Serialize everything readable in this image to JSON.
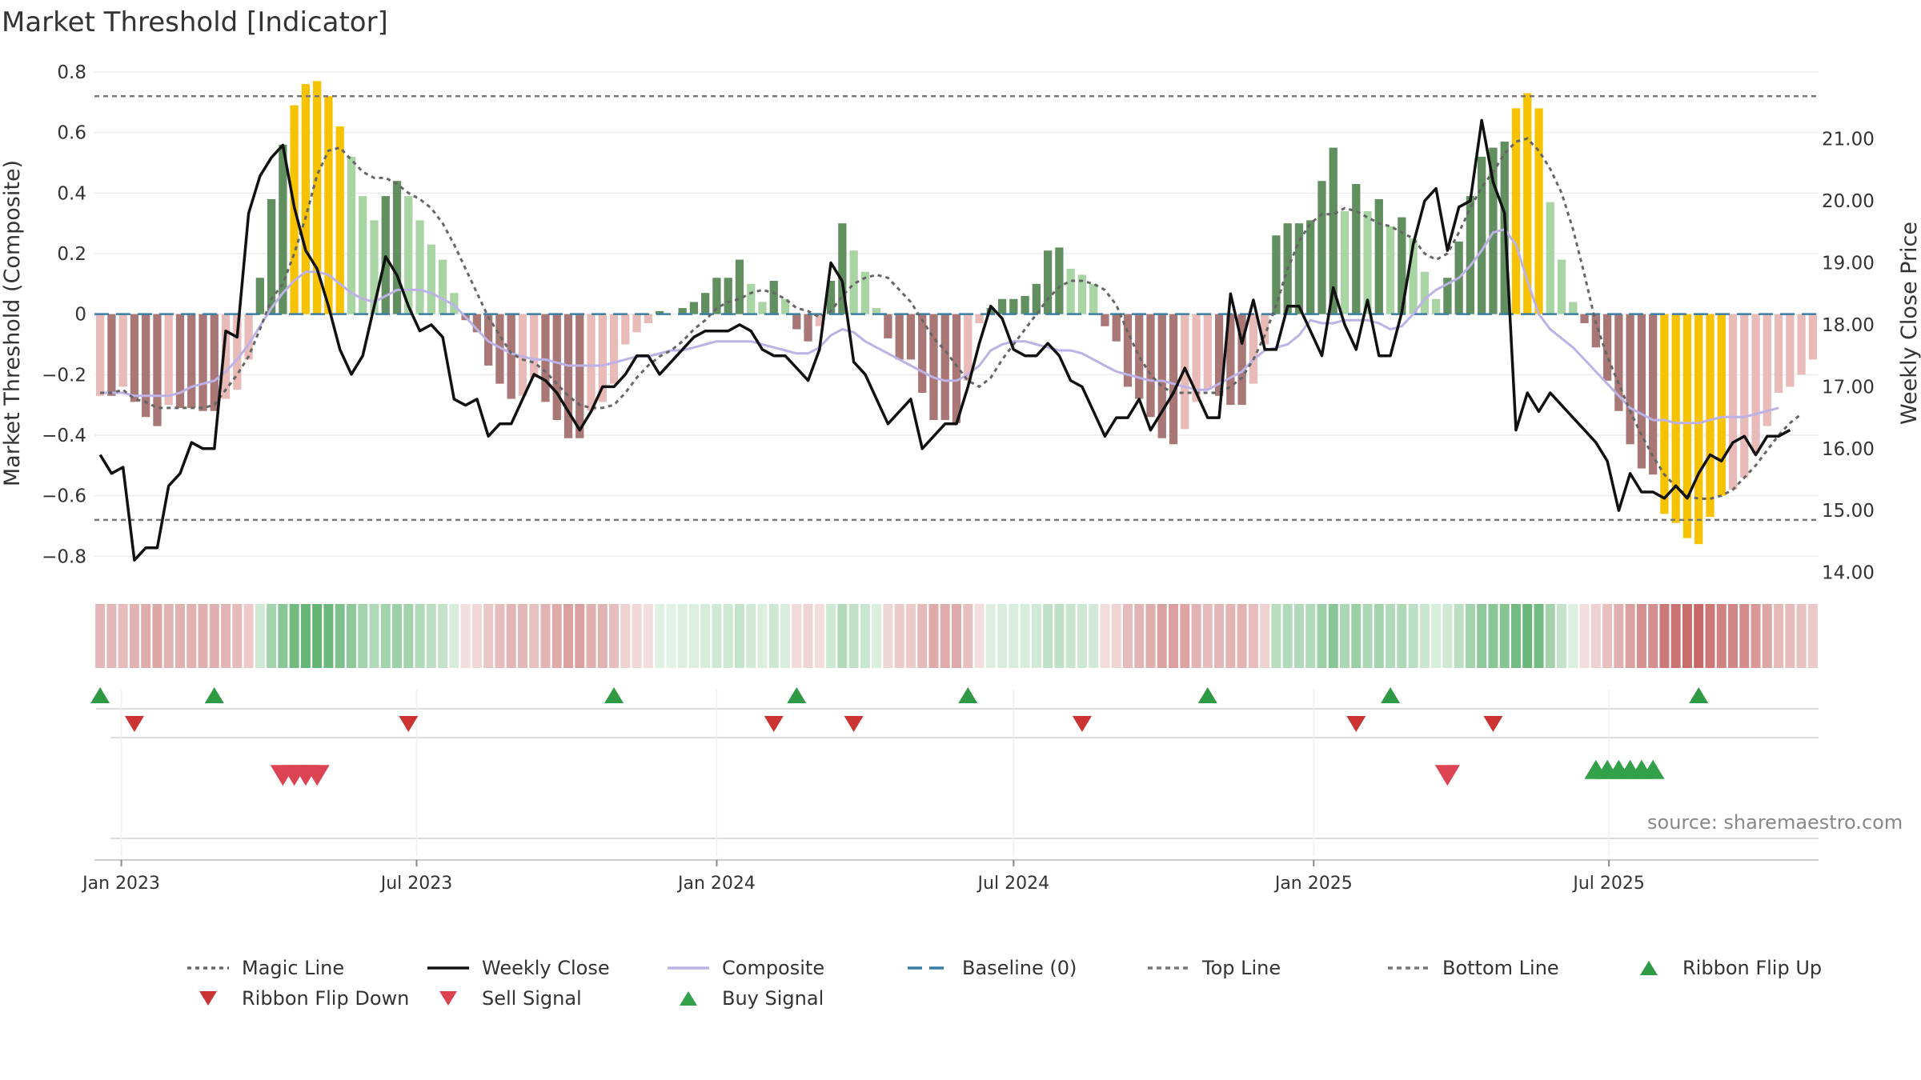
{
  "title": "Market Threshold [Indicator]",
  "source": "source: sharemaestro.com",
  "chart_data": {
    "type": "bar",
    "title": "Market Threshold [Indicator]",
    "start_date": "2022-12-19",
    "period_days": 7,
    "left_axis": {
      "label": "Market Threshold (Composite)",
      "ylim": [
        -0.86,
        0.8
      ],
      "ticks": [
        0.8,
        0.6,
        0.4,
        0.2,
        0,
        -0.2,
        -0.4,
        -0.6,
        -0.8
      ],
      "tick_labels": [
        "0.8",
        "0.6",
        "0.4",
        "0.2",
        "0",
        "−0.2",
        "−0.4",
        "−0.6",
        "−0.8"
      ]
    },
    "right_axis": {
      "label": "Weekly Close Price",
      "ylim": [
        13.97,
        22.08
      ],
      "ticks": [
        21,
        20,
        19,
        18,
        17,
        16,
        15,
        14
      ],
      "tick_labels": [
        "21.00",
        "20.00",
        "19.00",
        "18.00",
        "17.00",
        "16.00",
        "15.00",
        "14.00"
      ]
    },
    "x_axis": {
      "ticks": [
        "2023-01-01",
        "2023-07-01",
        "2024-01-01",
        "2024-07-01",
        "2025-01-01",
        "2025-07-01"
      ],
      "tick_labels": [
        "Jan 2023",
        "Jul 2023",
        "Jan 2024",
        "Jul 2024",
        "Jan 2025",
        "Jul 2025"
      ]
    },
    "top_line": 0.72,
    "bottom_line": -0.68,
    "baseline": 0,
    "composite_bars": [
      -0.27,
      -0.27,
      -0.24,
      -0.29,
      -0.34,
      -0.37,
      -0.3,
      -0.31,
      -0.31,
      -0.32,
      -0.32,
      -0.28,
      -0.25,
      -0.15,
      0.12,
      0.38,
      0.56,
      0.69,
      0.76,
      0.77,
      0.72,
      0.62,
      0.52,
      0.39,
      0.31,
      0.39,
      0.44,
      0.39,
      0.31,
      0.23,
      0.18,
      0.07,
      -0.02,
      -0.06,
      -0.17,
      -0.23,
      -0.28,
      -0.27,
      -0.21,
      -0.29,
      -0.35,
      -0.41,
      -0.41,
      -0.32,
      -0.29,
      -0.23,
      -0.1,
      -0.06,
      -0.03,
      0.01,
      0,
      0.02,
      0.04,
      0.07,
      0.12,
      0.12,
      0.18,
      0.1,
      0.04,
      0.11,
      0.05,
      -0.05,
      -0.09,
      -0.04,
      0.11,
      0.3,
      0.21,
      0.14,
      0.02,
      -0.08,
      -0.15,
      -0.15,
      -0.26,
      -0.35,
      -0.35,
      -0.36,
      -0.22,
      -0.03,
      0.02,
      0.05,
      0.05,
      0.06,
      0.1,
      0.21,
      0.22,
      0.15,
      0.13,
      0.1,
      -0.04,
      -0.09,
      -0.24,
      -0.28,
      -0.34,
      -0.41,
      -0.43,
      -0.38,
      -0.29,
      -0.25,
      -0.27,
      -0.3,
      -0.3,
      -0.23,
      -0.1,
      0.26,
      0.3,
      0.3,
      0.31,
      0.44,
      0.55,
      0.34,
      0.43,
      0.34,
      0.38,
      0.29,
      0.32,
      0.25,
      0.14,
      0.05,
      0.12,
      0.24,
      0.39,
      0.52,
      0.55,
      0.57,
      0.68,
      0.73,
      0.68,
      0.37,
      0.18,
      0.04,
      -0.03,
      -0.11,
      -0.22,
      -0.32,
      -0.43,
      -0.51,
      -0.53,
      -0.66,
      -0.69,
      -0.74,
      -0.76,
      -0.67,
      -0.6,
      -0.58,
      -0.54,
      -0.46,
      -0.37,
      -0.26,
      -0.24,
      -0.2,
      -0.15
    ],
    "magic_line": [
      -0.26,
      -0.26,
      -0.25,
      -0.28,
      -0.29,
      -0.31,
      -0.31,
      -0.31,
      -0.31,
      -0.31,
      -0.3,
      -0.25,
      -0.2,
      -0.14,
      -0.05,
      0.05,
      0.1,
      0.2,
      0.32,
      0.46,
      0.54,
      0.55,
      0.51,
      0.47,
      0.45,
      0.45,
      0.43,
      0.4,
      0.38,
      0.35,
      0.3,
      0.23,
      0.15,
      0.07,
      -0.01,
      -0.07,
      -0.13,
      -0.15,
      -0.16,
      -0.19,
      -0.23,
      -0.27,
      -0.3,
      -0.31,
      -0.31,
      -0.3,
      -0.26,
      -0.21,
      -0.17,
      -0.14,
      -0.12,
      -0.09,
      -0.05,
      -0.02,
      0.02,
      0.04,
      0.05,
      0.07,
      0.08,
      0.07,
      0.05,
      0.02,
      0.01,
      -0.01,
      0.01,
      0.06,
      0.1,
      0.12,
      0.13,
      0.12,
      0.08,
      0.04,
      -0.02,
      -0.08,
      -0.12,
      -0.17,
      -0.22,
      -0.24,
      -0.21,
      -0.15,
      -0.1,
      -0.05,
      0,
      0.05,
      0.09,
      0.11,
      0.11,
      0.1,
      0.08,
      0.03,
      -0.06,
      -0.14,
      -0.2,
      -0.24,
      -0.26,
      -0.26,
      -0.26,
      -0.26,
      -0.26,
      -0.24,
      -0.21,
      -0.15,
      -0.07,
      0.03,
      0.15,
      0.24,
      0.3,
      0.33,
      0.33,
      0.35,
      0.34,
      0.32,
      0.3,
      0.29,
      0.27,
      0.25,
      0.2,
      0.18,
      0.2,
      0.27,
      0.35,
      0.42,
      0.47,
      0.53,
      0.57,
      0.58,
      0.54,
      0.48,
      0.4,
      0.28,
      0.13,
      -0.03,
      -0.14,
      -0.23,
      -0.32,
      -0.4,
      -0.47,
      -0.53,
      -0.57,
      -0.6,
      -0.61,
      -0.61,
      -0.6,
      -0.58,
      -0.54,
      -0.5,
      -0.45,
      -0.4,
      -0.36,
      -0.33
    ],
    "composite_line": [
      -0.26,
      -0.26,
      -0.26,
      -0.27,
      -0.27,
      -0.27,
      -0.27,
      -0.26,
      -0.24,
      -0.23,
      -0.22,
      -0.19,
      -0.15,
      -0.1,
      -0.04,
      0.02,
      0.07,
      0.11,
      0.14,
      0.14,
      0.13,
      0.1,
      0.07,
      0.05,
      0.04,
      0.06,
      0.08,
      0.08,
      0.08,
      0.07,
      0.05,
      0.03,
      -0.01,
      -0.05,
      -0.09,
      -0.11,
      -0.13,
      -0.14,
      -0.15,
      -0.15,
      -0.16,
      -0.17,
      -0.17,
      -0.17,
      -0.17,
      -0.16,
      -0.15,
      -0.14,
      -0.14,
      -0.13,
      -0.12,
      -0.12,
      -0.11,
      -0.1,
      -0.09,
      -0.09,
      -0.09,
      -0.09,
      -0.1,
      -0.11,
      -0.12,
      -0.13,
      -0.13,
      -0.11,
      -0.07,
      -0.05,
      -0.06,
      -0.09,
      -0.11,
      -0.13,
      -0.15,
      -0.17,
      -0.19,
      -0.21,
      -0.22,
      -0.22,
      -0.2,
      -0.17,
      -0.12,
      -0.1,
      -0.09,
      -0.09,
      -0.1,
      -0.11,
      -0.12,
      -0.12,
      -0.13,
      -0.15,
      -0.17,
      -0.19,
      -0.2,
      -0.21,
      -0.22,
      -0.22,
      -0.23,
      -0.24,
      -0.25,
      -0.25,
      -0.23,
      -0.21,
      -0.19,
      -0.15,
      -0.12,
      -0.11,
      -0.1,
      -0.07,
      -0.02,
      -0.03,
      -0.03,
      -0.02,
      -0.02,
      -0.02,
      -0.03,
      -0.05,
      -0.04,
      0,
      0.05,
      0.08,
      0.1,
      0.12,
      0.16,
      0.21,
      0.27,
      0.28,
      0.23,
      0.11,
      0,
      -0.05,
      -0.08,
      -0.11,
      -0.15,
      -0.19,
      -0.23,
      -0.27,
      -0.31,
      -0.33,
      -0.35,
      -0.35,
      -0.36,
      -0.36,
      -0.36,
      -0.35,
      -0.34,
      -0.34,
      -0.34,
      -0.33,
      -0.32,
      -0.31
    ],
    "weekly_close": [
      15.9,
      15.6,
      15.7,
      14.2,
      14.4,
      14.4,
      15.4,
      15.6,
      16.1,
      16.0,
      16.0,
      17.9,
      17.8,
      19.8,
      20.4,
      20.7,
      20.9,
      19.9,
      19.2,
      18.9,
      18.3,
      17.6,
      17.2,
      17.5,
      18.3,
      19.1,
      18.8,
      18.3,
      17.9,
      18.0,
      17.8,
      16.8,
      16.7,
      16.8,
      16.2,
      16.4,
      16.4,
      16.8,
      17.2,
      17.1,
      16.9,
      16.6,
      16.3,
      16.6,
      17.0,
      17.0,
      17.2,
      17.5,
      17.5,
      17.2,
      17.4,
      17.6,
      17.8,
      17.9,
      17.9,
      17.9,
      18.0,
      17.9,
      17.6,
      17.5,
      17.5,
      17.3,
      17.1,
      17.6,
      19.0,
      18.7,
      17.4,
      17.2,
      16.8,
      16.4,
      16.6,
      16.8,
      16.0,
      16.2,
      16.4,
      16.4,
      17.0,
      17.7,
      18.3,
      18.1,
      17.6,
      17.5,
      17.5,
      17.7,
      17.5,
      17.1,
      17.0,
      16.6,
      16.2,
      16.5,
      16.5,
      16.8,
      16.3,
      16.6,
      16.9,
      17.3,
      16.9,
      16.5,
      16.5,
      18.5,
      17.7,
      18.4,
      17.6,
      17.6,
      18.3,
      18.3,
      17.9,
      17.5,
      18.6,
      18.0,
      17.6,
      18.4,
      17.5,
      17.5,
      18.2,
      19.3,
      20.0,
      20.2,
      19.2,
      19.9,
      20.0,
      21.3,
      20.3,
      19.8,
      16.3,
      16.9,
      16.6,
      16.9,
      16.7,
      16.5,
      16.3,
      16.1,
      15.8,
      15.0,
      15.6,
      15.3,
      15.3,
      15.2,
      15.4,
      15.2,
      15.6,
      15.9,
      15.8,
      16.1,
      16.2,
      15.9,
      16.2,
      16.2,
      16.3
    ],
    "ribbon_flip_up_x": [
      0,
      10,
      45,
      61,
      76,
      97,
      113,
      140
    ],
    "ribbon_flip_down_x": [
      3,
      27,
      59,
      66,
      86,
      110,
      122
    ],
    "sell_signal_x": [
      16,
      17,
      18,
      19,
      118
    ],
    "buy_signal_x": [
      131,
      132,
      133,
      134,
      135,
      136
    ],
    "legend": [
      "Magic Line",
      "Weekly Close",
      "Composite",
      "Baseline (0)",
      "Top Line",
      "Bottom Line",
      "Ribbon Flip Up",
      "Ribbon Flip Down",
      "Sell Signal",
      "Buy Signal"
    ]
  },
  "colors": {
    "neg_strong": "#a87776",
    "neg_light": "#e8bab8",
    "pos_strong": "#628f60",
    "pos_light": "#a9d4a3",
    "extreme": "#f7c200",
    "weekly_close": "#111111",
    "composite": "#bdb2e6",
    "magic_line": "#666666",
    "baseline": "#3a7ea3",
    "threshold_lines": "#777777",
    "flip_up": "#2e9a44",
    "flip_down": "#cc3333",
    "sell": "#dd4453",
    "buy": "#33a04a"
  }
}
